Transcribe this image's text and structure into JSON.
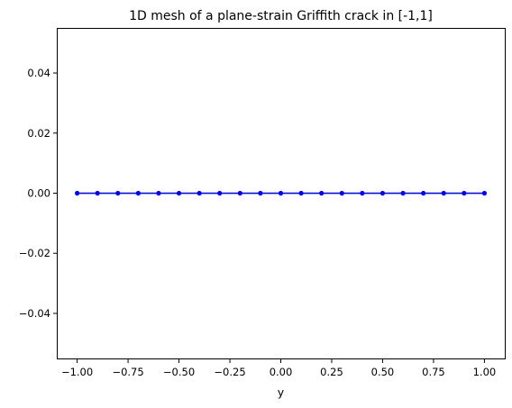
{
  "chart_data": {
    "type": "line",
    "title": "1D mesh of a plane-strain Griffith crack in [-1,1]",
    "xlabel": "y",
    "ylabel": "",
    "xlim": [
      -1.1,
      1.1
    ],
    "ylim": [
      -0.055,
      0.055
    ],
    "grid": false,
    "legend": "none",
    "x_ticks": [
      -1.0,
      -0.75,
      -0.5,
      -0.25,
      0.0,
      0.25,
      0.5,
      0.75,
      1.0
    ],
    "x_tick_labels": [
      "−1.00",
      "−0.75",
      "−0.50",
      "−0.25",
      "0.00",
      "0.25",
      "0.50",
      "0.75",
      "1.00"
    ],
    "y_ticks": [
      -0.04,
      -0.02,
      0.0,
      0.02,
      0.04
    ],
    "y_tick_labels": [
      "−0.04",
      "−0.02",
      "0.00",
      "0.02",
      "0.04"
    ],
    "series": [
      {
        "color": "#0000ff",
        "marker": "dot",
        "x": [
          -1.0,
          -0.9,
          -0.8,
          -0.7,
          -0.6,
          -0.5,
          -0.4,
          -0.3,
          -0.2,
          -0.1,
          0.0,
          0.1,
          0.2,
          0.3,
          0.4,
          0.5,
          0.6,
          0.7,
          0.8,
          0.9,
          1.0
        ],
        "y": [
          0,
          0,
          0,
          0,
          0,
          0,
          0,
          0,
          0,
          0,
          0,
          0,
          0,
          0,
          0,
          0,
          0,
          0,
          0,
          0,
          0
        ]
      }
    ]
  }
}
